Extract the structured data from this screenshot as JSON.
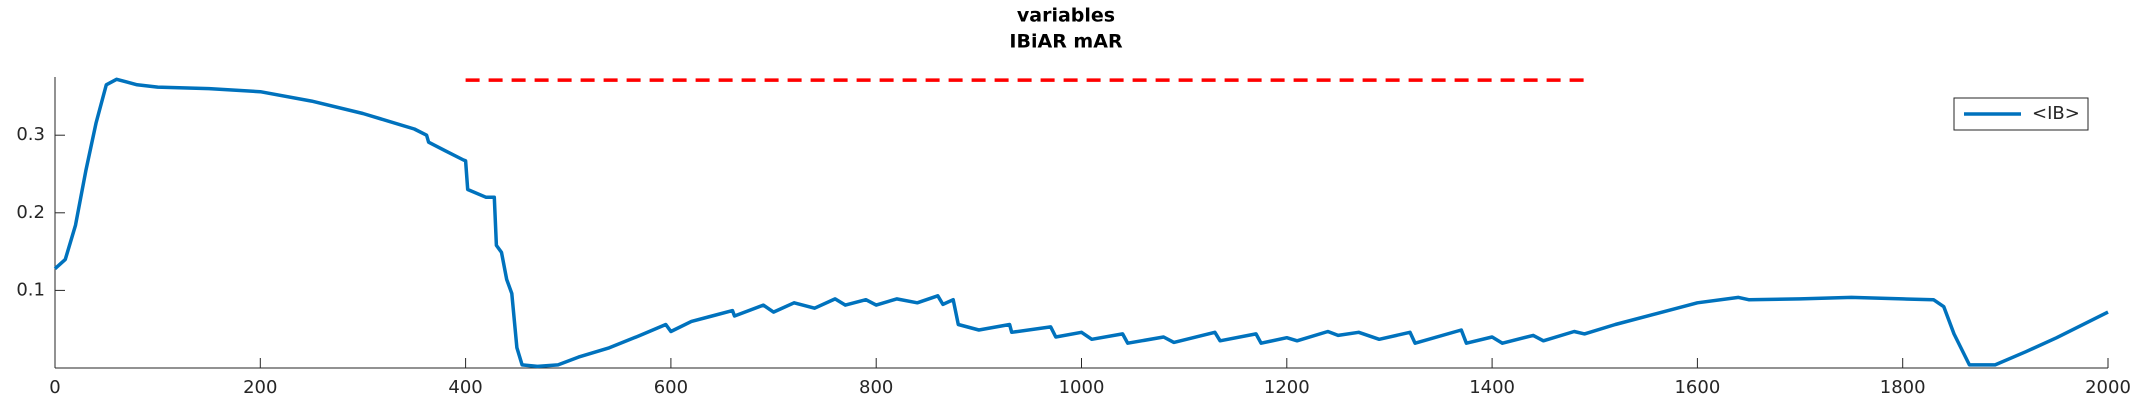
{
  "chart_data": {
    "type": "line",
    "title": "variables",
    "subtitle": "IBiAR mAR",
    "xlim": [
      0,
      2000
    ],
    "xticks": [
      0,
      200,
      400,
      600,
      800,
      1000,
      1200,
      1400,
      1600,
      1800,
      2000
    ],
    "ylim": [
      0,
      0.375
    ],
    "yticks": [
      0.1,
      0.2,
      0.3
    ],
    "grid": false,
    "legend": "upper-right",
    "series": [
      {
        "name": "<IB>",
        "color": "#0072bd",
        "linestyle": "solid",
        "x": [
          0,
          10,
          20,
          30,
          40,
          50,
          60,
          80,
          100,
          150,
          200,
          250,
          300,
          350,
          362,
          364,
          380,
          398,
          400,
          402,
          420,
          428,
          430,
          435,
          440,
          445,
          450,
          455,
          470,
          490,
          510,
          540,
          570,
          595,
          600,
          620,
          640,
          660,
          662,
          690,
          700,
          720,
          740,
          760,
          770,
          790,
          800,
          820,
          840,
          860,
          865,
          875,
          880,
          900,
          930,
          932,
          970,
          975,
          1000,
          1010,
          1040,
          1045,
          1080,
          1090,
          1130,
          1135,
          1170,
          1175,
          1200,
          1210,
          1240,
          1250,
          1270,
          1290,
          1320,
          1325,
          1370,
          1375,
          1400,
          1410,
          1440,
          1450,
          1480,
          1490,
          1520,
          1560,
          1600,
          1640,
          1650,
          1700,
          1750,
          1800,
          1830,
          1840,
          1850,
          1865,
          1890,
          1920,
          1950,
          2000
        ],
        "values": [
          0.128,
          0.14,
          0.184,
          0.254,
          0.316,
          0.365,
          0.372,
          0.365,
          0.362,
          0.36,
          0.356,
          0.344,
          0.328,
          0.308,
          0.3,
          0.291,
          0.28,
          0.268,
          0.267,
          0.23,
          0.22,
          0.22,
          0.158,
          0.149,
          0.114,
          0.096,
          0.026,
          0.004,
          0.002,
          0.004,
          0.014,
          0.026,
          0.042,
          0.056,
          0.047,
          0.06,
          0.067,
          0.074,
          0.067,
          0.081,
          0.072,
          0.084,
          0.077,
          0.089,
          0.081,
          0.088,
          0.081,
          0.089,
          0.084,
          0.093,
          0.082,
          0.088,
          0.056,
          0.049,
          0.056,
          0.046,
          0.053,
          0.04,
          0.046,
          0.037,
          0.044,
          0.032,
          0.04,
          0.033,
          0.046,
          0.035,
          0.044,
          0.032,
          0.039,
          0.035,
          0.047,
          0.042,
          0.046,
          0.037,
          0.046,
          0.032,
          0.049,
          0.032,
          0.04,
          0.032,
          0.042,
          0.035,
          0.047,
          0.044,
          0.056,
          0.07,
          0.084,
          0.091,
          0.088,
          0.089,
          0.091,
          0.089,
          0.088,
          0.079,
          0.044,
          0.004,
          0.004,
          0.021,
          0.039,
          0.072
        ]
      },
      {
        "color": "#ff0000",
        "linestyle": "dashed",
        "x": [
          400,
          1490
        ],
        "values": [
          0.371,
          0.371
        ]
      }
    ]
  }
}
